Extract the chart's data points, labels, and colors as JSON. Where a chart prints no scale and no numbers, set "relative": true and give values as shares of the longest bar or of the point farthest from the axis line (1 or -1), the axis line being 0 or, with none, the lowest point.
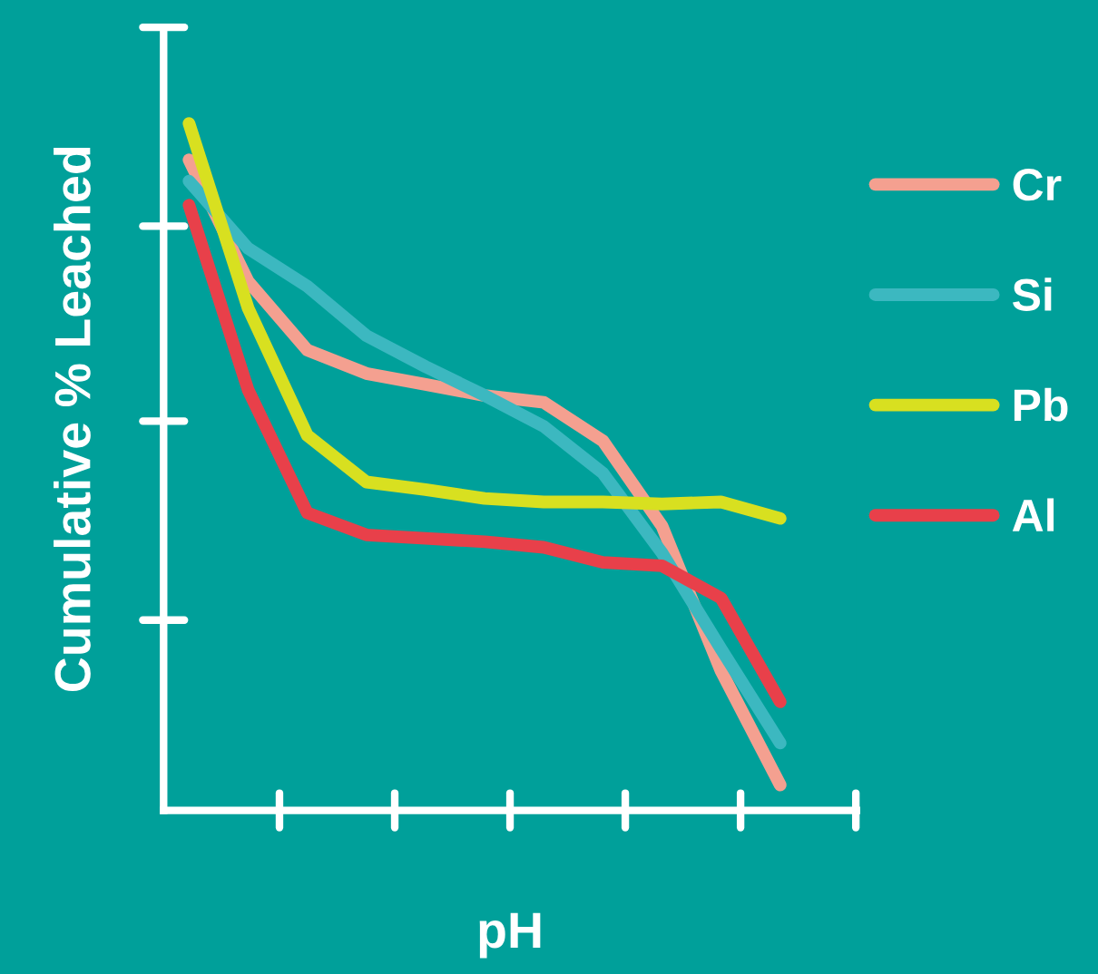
{
  "chart_data": {
    "type": "line",
    "relative": true,
    "xlabel": "pH",
    "ylabel": "Cumulative % Leached",
    "categories": [
      null,
      null,
      null,
      null,
      null,
      null,
      null,
      null,
      null,
      null,
      null
    ],
    "series": [
      {
        "name": "Cr",
        "color": "#f4a090",
        "values": [
          0.947,
          0.77,
          0.67,
          0.636,
          0.62,
          0.604,
          0.594,
          0.538,
          0.414,
          0.203,
          0.037
        ]
      },
      {
        "name": "Si",
        "color": "#3cb8c0",
        "values": [
          0.916,
          0.818,
          0.763,
          0.691,
          0.646,
          0.604,
          0.559,
          0.491,
          0.375,
          0.235,
          0.098
        ]
      },
      {
        "name": "Pb",
        "color": "#d8e020",
        "values": [
          1.0,
          0.731,
          0.546,
          0.478,
          0.467,
          0.454,
          0.449,
          0.449,
          0.446,
          0.449,
          0.425
        ]
      },
      {
        "name": "Al",
        "color": "#e8404a",
        "values": [
          0.881,
          0.612,
          0.433,
          0.401,
          0.396,
          0.391,
          0.383,
          0.361,
          0.356,
          0.309,
          0.158
        ]
      }
    ],
    "legend": "right",
    "marker": "none",
    "line_style": "solid"
  }
}
